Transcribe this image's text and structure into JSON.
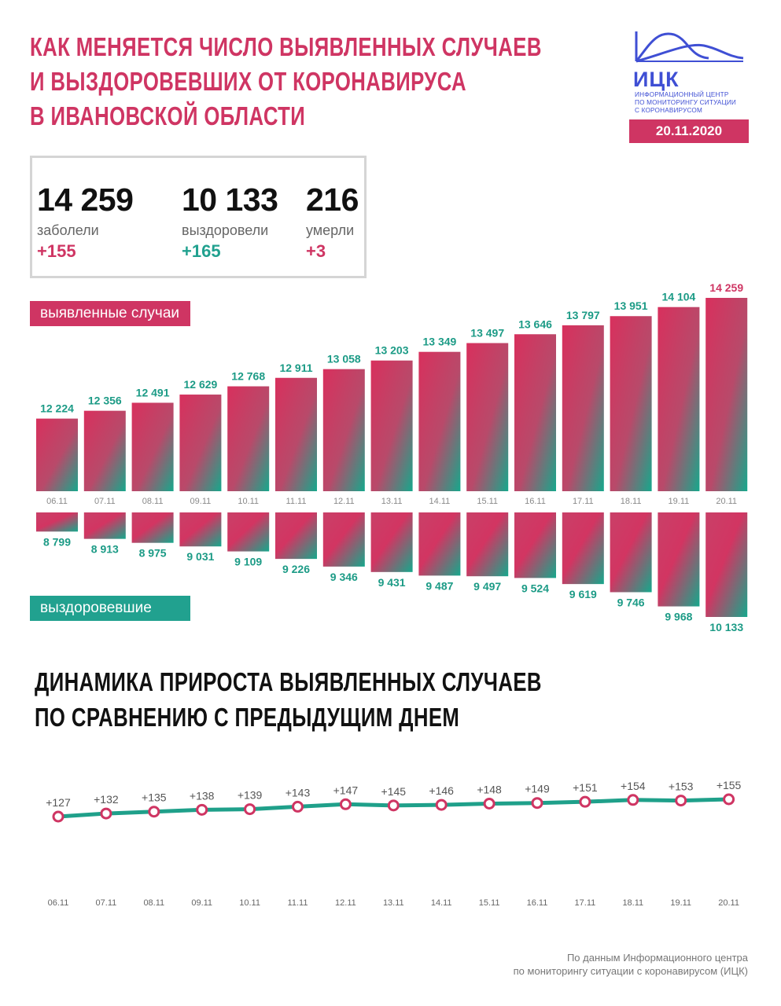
{
  "header": {
    "title_lines": [
      "КАК МЕНЯЕТСЯ ЧИСЛО ВЫЯВЛЕННЫХ СЛУЧАЕВ",
      "И ВЫЗДОРОВЕВШИХ ОТ КОРОНАВИРУСА",
      "В ИВАНОВСКОЙ ОБЛАСТИ"
    ],
    "logo_name": "ИЦК",
    "logo_subtitle_lines": [
      "ИНФОРМАЦИОННЫЙ ЦЕНТР",
      "ПО МОНИТОРИНГУ СИТУАЦИИ",
      "С КОРОНАВИРУСОМ"
    ],
    "date": "20.11.2020"
  },
  "stats": [
    {
      "value": "14 259",
      "label": "заболели",
      "delta": "+155"
    },
    {
      "value": "10 133",
      "label": "выздоровели",
      "delta": "+165"
    },
    {
      "value": "216",
      "label": "умерли",
      "delta": "+3"
    }
  ],
  "colors": {
    "accent_pink": "#cf3563",
    "accent_teal": "#21a18f",
    "logo_blue": "#3f4fd4",
    "line_teal": "#1fa08a"
  },
  "chart_data": [
    {
      "type": "bar",
      "series_label_top": "выявленные случаи",
      "series_label_bottom": "выздоровевшие",
      "categories": [
        "06.11",
        "07.11",
        "08.11",
        "09.11",
        "10.11",
        "11.11",
        "12.11",
        "13.11",
        "14.11",
        "15.11",
        "16.11",
        "17.11",
        "18.11",
        "19.11",
        "20.11"
      ],
      "series": [
        {
          "name": "выявленные случаи",
          "values": [
            12224,
            12356,
            12491,
            12629,
            12768,
            12911,
            13058,
            13203,
            13349,
            13497,
            13646,
            13797,
            13951,
            14104,
            14259
          ],
          "labels": [
            "12 224",
            "12 356",
            "12 491",
            "12 629",
            "12 768",
            "12 911",
            "13 058",
            "13 203",
            "13 349",
            "13 497",
            "13 646",
            "13 797",
            "13 951",
            "14 104",
            "14 259"
          ]
        },
        {
          "name": "выздоровевшие",
          "values": [
            8799,
            8913,
            8975,
            9031,
            9109,
            9226,
            9346,
            9431,
            9487,
            9497,
            9524,
            9619,
            9746,
            9968,
            10133
          ],
          "labels": [
            "8 799",
            "8 913",
            "8 975",
            "9 031",
            "9 109",
            "9 226",
            "9 346",
            "9 431",
            "9 487",
            "9 497",
            "9 524",
            "9 619",
            "9 746",
            "9 968",
            "10 133"
          ]
        }
      ]
    },
    {
      "type": "line",
      "title_lines": [
        "ДИНАМИКА ПРИРОСТА ВЫЯВЛЕННЫХ СЛУЧАЕВ",
        "ПО СРАВНЕНИЮ С ПРЕДЫДУЩИМ ДНЕМ"
      ],
      "x": [
        "06.11",
        "07.11",
        "08.11",
        "09.11",
        "10.11",
        "11.11",
        "12.11",
        "13.11",
        "14.11",
        "15.11",
        "16.11",
        "17.11",
        "18.11",
        "19.11",
        "20.11"
      ],
      "values": [
        127,
        132,
        135,
        138,
        139,
        143,
        147,
        145,
        146,
        148,
        149,
        151,
        154,
        153,
        155
      ],
      "labels": [
        "+127",
        "+132",
        "+135",
        "+138",
        "+139",
        "+143",
        "+147",
        "+145",
        "+146",
        "+148",
        "+149",
        "+151",
        "+154",
        "+153",
        "+155"
      ]
    }
  ],
  "footer": {
    "source_lines": [
      "По данным Информационного центра",
      "по мониторингу ситуации с коронавирусом (ИЦК)"
    ]
  }
}
